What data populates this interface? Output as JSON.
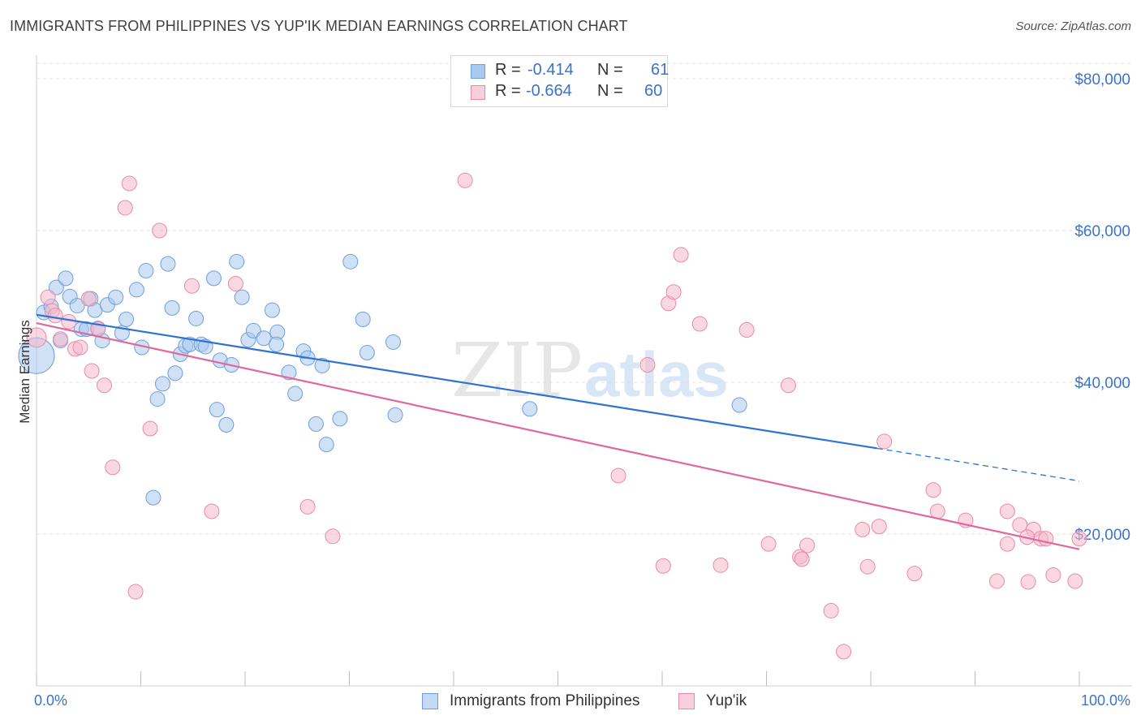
{
  "title": "IMMIGRANTS FROM PHILIPPINES VS YUP'IK MEDIAN EARNINGS CORRELATION CHART",
  "source": "Source: ZipAtlas.com",
  "watermark": {
    "zip": "ZIP",
    "atlas": "atlas"
  },
  "colors": {
    "blue_fill": "#a9c8ef",
    "blue_stroke": "#6e9fdc",
    "blue_line": "#2f72d3",
    "pink_fill": "#f5b8cb",
    "pink_stroke": "#e98aa8",
    "pink_line": "#e0689a",
    "axis_text": "#3a73c9",
    "grid": "#e3e3e3"
  },
  "legend": {
    "rows": [
      {
        "r_label": "R =",
        "r_value": "-0.414",
        "n_label": "N =",
        "n_value": "61"
      },
      {
        "r_label": "R =",
        "r_value": "-0.664",
        "n_label": "N =",
        "n_value": "60"
      }
    ]
  },
  "bottom_legend": [
    "Immigrants from Philippines",
    "Yup'ik"
  ],
  "chart_data": {
    "type": "scatter",
    "title": "IMMIGRANTS FROM PHILIPPINES VS YUP'IK MEDIAN EARNINGS CORRELATION CHART",
    "xlabel": "",
    "ylabel": "Median Earnings",
    "xlim": [
      0,
      100
    ],
    "ylim": [
      0,
      80000
    ],
    "x_tick_labels": [
      "0.0%",
      "100.0%"
    ],
    "y_ticks": [
      20000,
      40000,
      60000,
      80000
    ],
    "y_tick_labels": [
      "$20,000",
      "$40,000",
      "$60,000",
      "$80,000"
    ],
    "grid": true,
    "legend_position": "top-center",
    "series": [
      {
        "name": "Immigrants from Philippines",
        "color": "#a9c8ef",
        "points": [
          [
            0.0,
            43500
          ],
          [
            0.7,
            49200
          ],
          [
            1.4,
            50000
          ],
          [
            1.9,
            52500
          ],
          [
            2.3,
            45500
          ],
          [
            2.8,
            53700
          ],
          [
            3.2,
            51300
          ],
          [
            3.9,
            50100
          ],
          [
            4.3,
            47000
          ],
          [
            4.8,
            47000
          ],
          [
            5.2,
            51000
          ],
          [
            5.6,
            49500
          ],
          [
            5.9,
            47100
          ],
          [
            6.3,
            45500
          ],
          [
            6.8,
            50200
          ],
          [
            7.6,
            51200
          ],
          [
            8.2,
            46500
          ],
          [
            8.6,
            48300
          ],
          [
            9.6,
            52200
          ],
          [
            10.1,
            44600
          ],
          [
            10.5,
            54700
          ],
          [
            11.2,
            24800
          ],
          [
            11.6,
            37800
          ],
          [
            12.1,
            39800
          ],
          [
            12.6,
            55600
          ],
          [
            13.0,
            49800
          ],
          [
            13.3,
            41200
          ],
          [
            13.8,
            43700
          ],
          [
            14.3,
            44800
          ],
          [
            14.7,
            45000
          ],
          [
            15.3,
            48400
          ],
          [
            15.8,
            45000
          ],
          [
            16.2,
            44700
          ],
          [
            17.0,
            53700
          ],
          [
            17.3,
            36400
          ],
          [
            17.6,
            42900
          ],
          [
            18.2,
            34400
          ],
          [
            18.7,
            42300
          ],
          [
            19.2,
            55900
          ],
          [
            19.7,
            51200
          ],
          [
            20.3,
            45600
          ],
          [
            20.8,
            46800
          ],
          [
            21.8,
            45800
          ],
          [
            22.6,
            49500
          ],
          [
            23.1,
            46600
          ],
          [
            23.0,
            45000
          ],
          [
            24.2,
            41300
          ],
          [
            24.8,
            38500
          ],
          [
            25.6,
            44100
          ],
          [
            26.0,
            43200
          ],
          [
            26.8,
            34500
          ],
          [
            27.4,
            42200
          ],
          [
            27.8,
            31800
          ],
          [
            29.1,
            35200
          ],
          [
            30.1,
            55900
          ],
          [
            31.3,
            48300
          ],
          [
            31.7,
            43900
          ],
          [
            34.2,
            45300
          ],
          [
            34.4,
            35700
          ],
          [
            47.3,
            36500
          ],
          [
            67.4,
            37000
          ]
        ]
      },
      {
        "name": "Yup'ik",
        "color": "#f5b8cb",
        "points": [
          [
            0.0,
            45900
          ],
          [
            1.1,
            51200
          ],
          [
            1.5,
            49400
          ],
          [
            1.8,
            48800
          ],
          [
            2.3,
            45700
          ],
          [
            3.1,
            48000
          ],
          [
            3.7,
            44400
          ],
          [
            4.2,
            44600
          ],
          [
            5.0,
            51000
          ],
          [
            5.3,
            41500
          ],
          [
            5.9,
            47000
          ],
          [
            6.5,
            39600
          ],
          [
            7.3,
            28800
          ],
          [
            8.5,
            63000
          ],
          [
            8.9,
            66200
          ],
          [
            9.5,
            12400
          ],
          [
            10.9,
            33900
          ],
          [
            11.8,
            60000
          ],
          [
            14.9,
            52700
          ],
          [
            16.8,
            23000
          ],
          [
            19.1,
            53000
          ],
          [
            26.0,
            23600
          ],
          [
            28.4,
            19700
          ],
          [
            41.1,
            66600
          ],
          [
            55.8,
            27700
          ],
          [
            58.6,
            42300
          ],
          [
            60.1,
            15800
          ],
          [
            60.6,
            50400
          ],
          [
            61.1,
            51900
          ],
          [
            61.8,
            56800
          ],
          [
            63.6,
            47700
          ],
          [
            65.6,
            15900
          ],
          [
            68.1,
            46900
          ],
          [
            70.2,
            18700
          ],
          [
            72.1,
            39600
          ],
          [
            73.2,
            17000
          ],
          [
            73.4,
            16700
          ],
          [
            73.9,
            18500
          ],
          [
            76.2,
            9900
          ],
          [
            77.4,
            4500
          ],
          [
            79.2,
            20600
          ],
          [
            79.7,
            15700
          ],
          [
            80.8,
            21000
          ],
          [
            81.3,
            32200
          ],
          [
            84.2,
            14800
          ],
          [
            86.0,
            25800
          ],
          [
            86.4,
            23000
          ],
          [
            89.1,
            21800
          ],
          [
            92.1,
            13800
          ],
          [
            93.1,
            18700
          ],
          [
            93.1,
            23000
          ],
          [
            94.3,
            21200
          ],
          [
            95.1,
            13700
          ],
          [
            95.6,
            20600
          ],
          [
            96.3,
            19400
          ],
          [
            96.8,
            19400
          ],
          [
            97.5,
            14600
          ],
          [
            99.6,
            13800
          ],
          [
            100.0,
            19400
          ],
          [
            95.0,
            19600
          ]
        ]
      }
    ],
    "trend_lines": [
      {
        "series": "Immigrants from Philippines",
        "start": [
          0,
          48900
        ],
        "end_solid": [
          80.6,
          31300
        ],
        "end_dashed": [
          100,
          27000
        ]
      },
      {
        "series": "Yup'ik",
        "start": [
          0,
          47800
        ],
        "end": [
          100,
          18000
        ]
      }
    ]
  }
}
